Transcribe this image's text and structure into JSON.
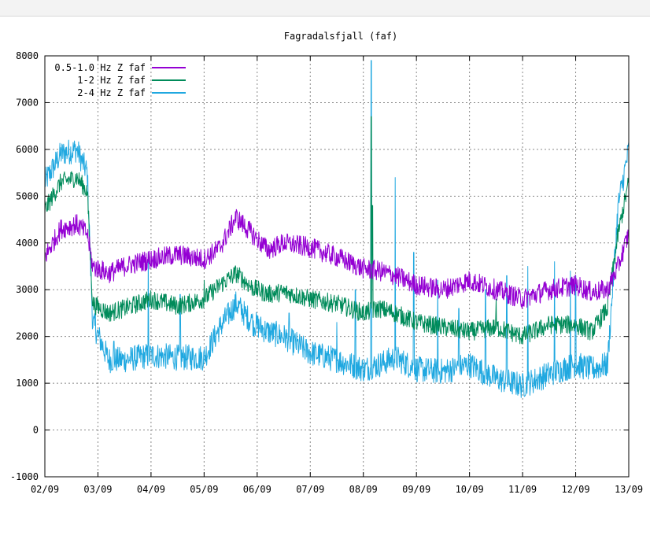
{
  "chart_data": {
    "type": "line",
    "title": "Fagradalsfjall (faf)",
    "xlabel": "",
    "ylabel": "",
    "ylim": [
      -1000,
      8000
    ],
    "xlim": [
      "02/09",
      "13/09"
    ],
    "grid": true,
    "legend_position": "top-left",
    "x_ticks": [
      "02/09",
      "03/09",
      "04/09",
      "05/09",
      "06/09",
      "07/09",
      "08/09",
      "09/09",
      "10/09",
      "11/09",
      "12/09",
      "13/09"
    ],
    "y_ticks": [
      "8000",
      "7000",
      "6000",
      "5000",
      "4000",
      "3000",
      "2000",
      "1000",
      "0",
      "-1000"
    ],
    "x_days": [
      0,
      0.3,
      0.6,
      0.8,
      0.9,
      1.2,
      1.5,
      2.0,
      2.5,
      3.0,
      3.3,
      3.6,
      3.9,
      4.2,
      4.5,
      5.0,
      5.5,
      6.0,
      6.3,
      6.6,
      7.0,
      7.5,
      8.0,
      8.5,
      9.0,
      9.5,
      10.0,
      10.3,
      10.6,
      10.8,
      11.0
    ],
    "series": [
      {
        "name": "0.5-1.0 Hz Z faf",
        "color": "#9400d3",
        "values": [
          3700,
          4300,
          4400,
          4200,
          3500,
          3350,
          3500,
          3650,
          3750,
          3650,
          3900,
          4550,
          4200,
          3850,
          4000,
          3900,
          3700,
          3450,
          3400,
          3300,
          3100,
          3000,
          3200,
          3000,
          2800,
          3000,
          3100,
          2950,
          3000,
          3500,
          4200
        ],
        "noise": 220
      },
      {
        "name": "1-2 Hz Z faf",
        "color": "#008b5a",
        "values": [
          4700,
          5300,
          5400,
          5100,
          2700,
          2500,
          2600,
          2800,
          2650,
          2800,
          3100,
          3350,
          3050,
          2900,
          2950,
          2800,
          2700,
          2500,
          2600,
          2500,
          2300,
          2200,
          2100,
          2200,
          2000,
          2250,
          2250,
          2100,
          2600,
          4200,
          5300
        ],
        "noise": 200
      },
      {
        "name": "2-4 Hz Z faf",
        "color": "#20a8e0",
        "values": [
          5300,
          5900,
          6000,
          5500,
          2300,
          1500,
          1500,
          1600,
          1550,
          1550,
          2200,
          2700,
          2300,
          2100,
          2000,
          1650,
          1500,
          1300,
          1400,
          1550,
          1300,
          1250,
          1400,
          1100,
          950,
          1200,
          1400,
          1300,
          1400,
          4800,
          6000
        ],
        "noise": 280
      }
    ]
  }
}
